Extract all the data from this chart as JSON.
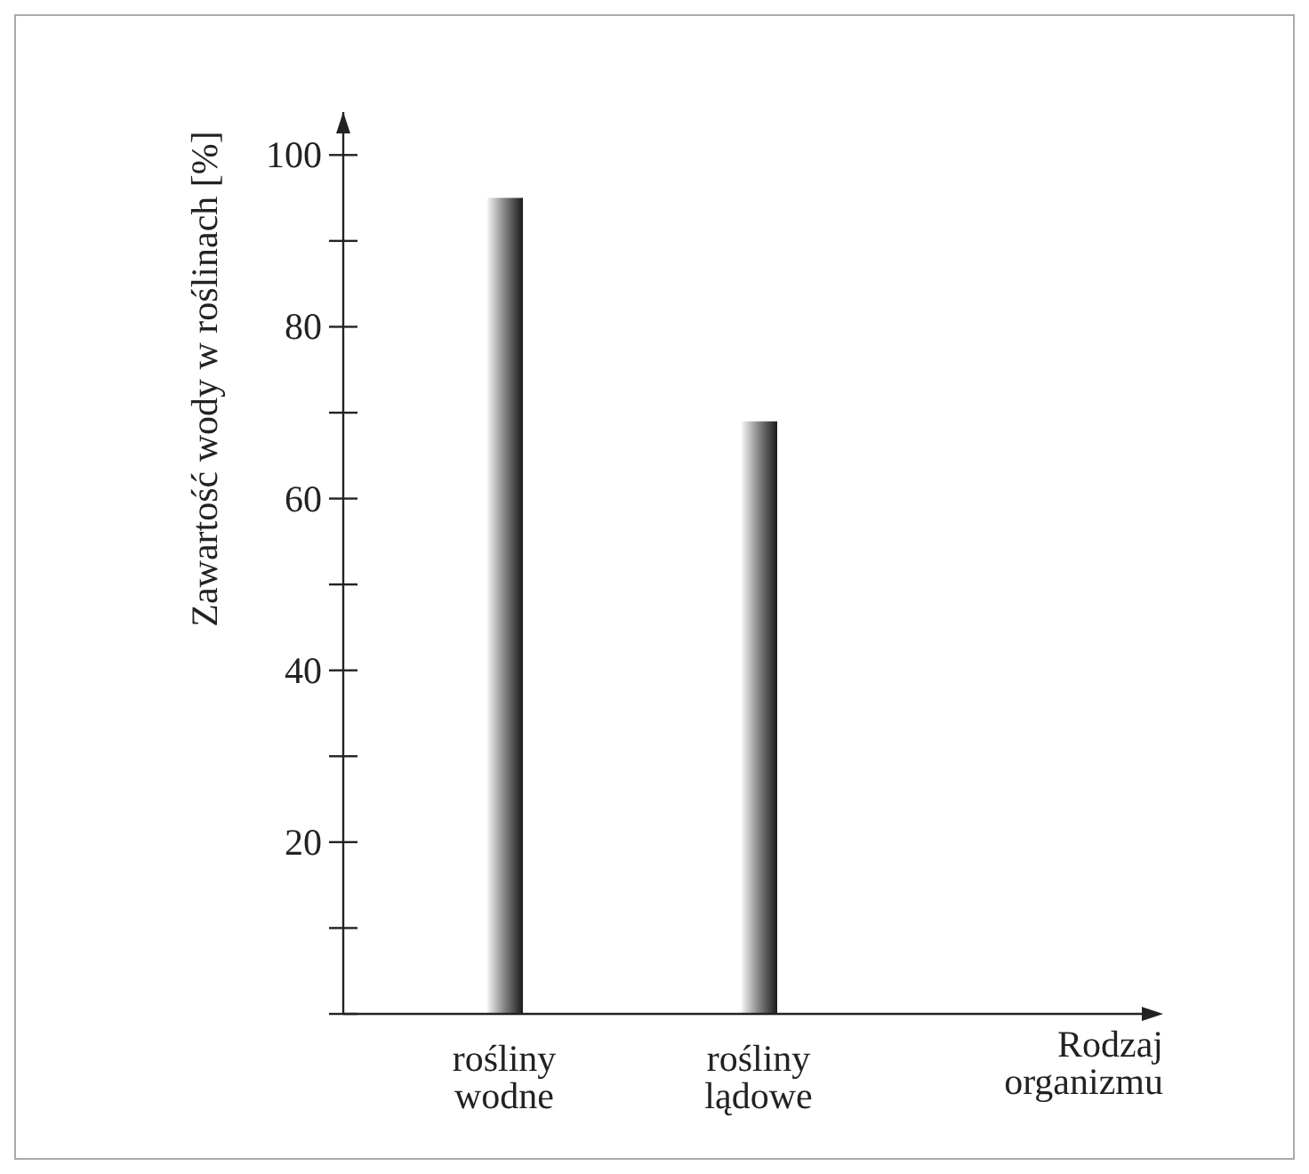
{
  "chart_data": {
    "type": "bar",
    "xlabel": "Rodzaj organizmu",
    "ylabel": "Zawartość wody w roślinach [%]",
    "categories": [
      "rośliny wodne",
      "rośliny lądowe"
    ],
    "values": [
      95,
      69
    ],
    "color": "#808080",
    "ylim": [
      0,
      105
    ],
    "yticks": [
      {
        "value": 0,
        "label": null
      },
      {
        "value": 10,
        "label": null
      },
      20,
      {
        "value": 30,
        "label": null
      },
      40,
      {
        "value": 50,
        "label": null
      },
      60,
      {
        "value": 70,
        "label": null
      },
      80,
      {
        "value": 90,
        "label": null
      },
      100
    ],
    "grid": false
  }
}
